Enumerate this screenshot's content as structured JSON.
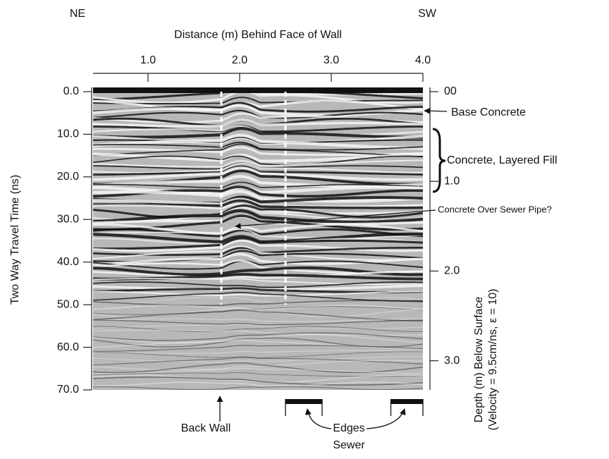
{
  "chart_data": {
    "type": "radargram",
    "title": "Distance (m) Behind Face of Wall",
    "y_label": "Two Way Travel Time (ns)",
    "y2_label": "Depth (m) Below Surface",
    "y2_sublabel": "(Velocity = 9.5cm/ns, ε = 10)",
    "left_corner": "NE",
    "right_corner": "SW",
    "xlim": [
      0.4,
      4.0
    ],
    "xticks": [
      {
        "value": 1,
        "label": "1.0"
      },
      {
        "value": 2,
        "label": "2.0"
      },
      {
        "value": 3,
        "label": "3.0"
      },
      {
        "value": 4,
        "label": "4.0"
      }
    ],
    "ylim": [
      0,
      70
    ],
    "yticks": [
      {
        "value": 0,
        "label": "0.0"
      },
      {
        "value": 10,
        "label": "10.0"
      },
      {
        "value": 20,
        "label": "20.0"
      },
      {
        "value": 30,
        "label": "30.0"
      },
      {
        "value": 40,
        "label": "40.0"
      },
      {
        "value": 50,
        "label": "50.0"
      },
      {
        "value": 60,
        "label": "60.0"
      },
      {
        "value": 70,
        "label": "70.0"
      }
    ],
    "y2lim": [
      0,
      3.325
    ],
    "y2ticks": [
      {
        "value": 0,
        "label": "00"
      },
      {
        "value": 1,
        "label": "1.0"
      },
      {
        "value": 2,
        "label": "2.0"
      },
      {
        "value": 3,
        "label": "3.0"
      }
    ],
    "vlines": [
      1.8,
      2.5
    ],
    "vline_end": 50,
    "sewer_edges": [
      [
        2.5,
        2.9
      ],
      [
        3.65,
        4.0
      ]
    ],
    "annotations": {
      "base_concrete": "Base Concrete",
      "layered_fill": "Concrete, Layered Fill",
      "sewer_pipe": "Concrete Over Sewer Pipe?",
      "back_wall": "Back Wall",
      "edges": "Edges",
      "sewer": "Sewer"
    }
  }
}
